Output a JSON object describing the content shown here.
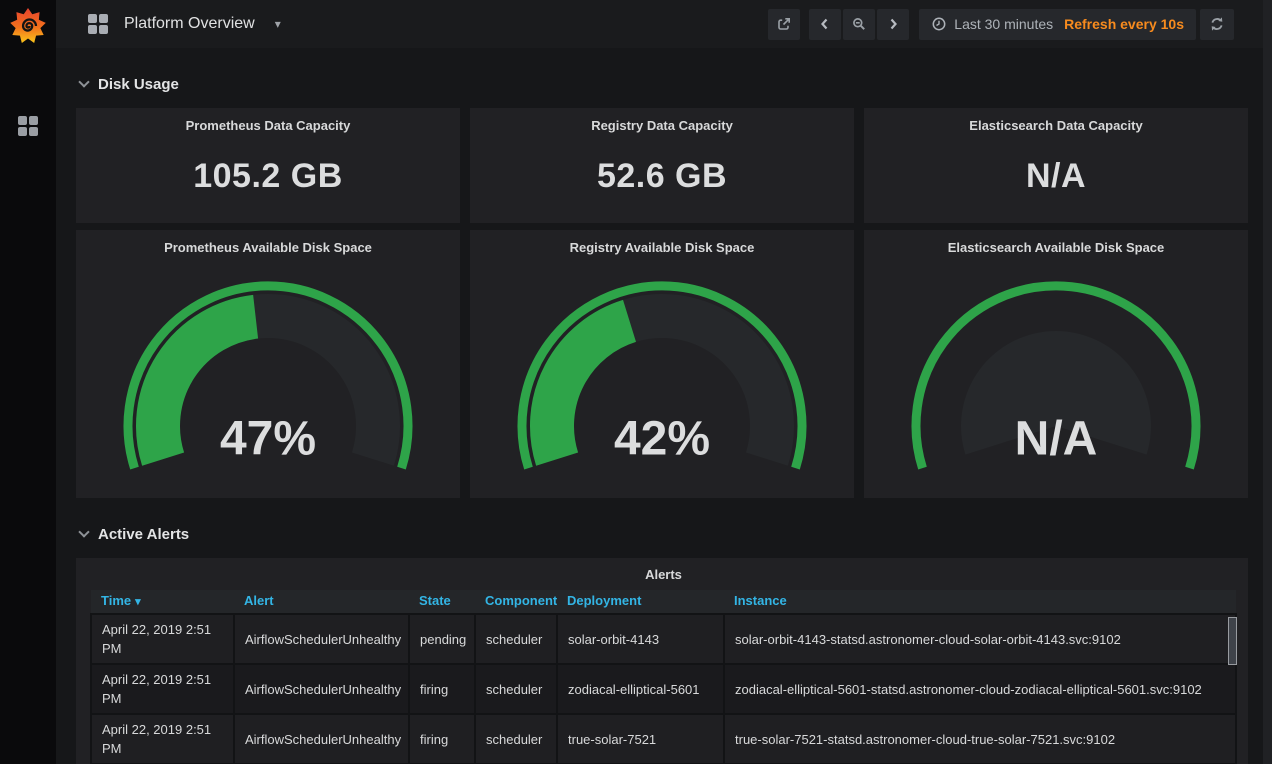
{
  "navbar": {
    "title": "Platform Overview",
    "title_caret": "▾",
    "time_range": "Last 30 minutes",
    "refresh_text": "Refresh every 10s"
  },
  "sections": {
    "disk_usage": "Disk Usage",
    "active_alerts": "Active Alerts"
  },
  "stat_panels": [
    {
      "title": "Prometheus Data Capacity",
      "value": "105.2 GB"
    },
    {
      "title": "Registry Data Capacity",
      "value": "52.6 GB"
    },
    {
      "title": "Elasticsearch Data Capacity",
      "value": "N/A"
    }
  ],
  "gauge_panels": [
    {
      "title": "Prometheus Available Disk Space",
      "value_label": "47%",
      "percent": 47
    },
    {
      "title": "Registry Available Disk Space",
      "value_label": "42%",
      "percent": 42
    },
    {
      "title": "Elasticsearch Available Disk Space",
      "value_label": "N/A",
      "percent": null
    }
  ],
  "gauge_config": {
    "min": 0,
    "max": 100,
    "span_degrees": 215
  },
  "alerts_table": {
    "title": "Alerts",
    "columns": [
      {
        "label": "Time",
        "sorted": "desc"
      },
      {
        "label": "Alert"
      },
      {
        "label": "State"
      },
      {
        "label": "Component"
      },
      {
        "label": "Deployment"
      },
      {
        "label": "Instance"
      }
    ],
    "rows": [
      [
        "April 22, 2019 2:51 PM",
        "AirflowSchedulerUnhealthy",
        "pending",
        "scheduler",
        "solar-orbit-4143",
        "solar-orbit-4143-statsd.astronomer-cloud-solar-orbit-4143.svc:9102"
      ],
      [
        "April 22, 2019 2:51 PM",
        "AirflowSchedulerUnhealthy",
        "firing",
        "scheduler",
        "zodiacal-elliptical-5601",
        "zodiacal-elliptical-5601-statsd.astronomer-cloud-zodiacal-elliptical-5601.svc:9102"
      ],
      [
        "April 22, 2019 2:51 PM",
        "AirflowSchedulerUnhealthy",
        "firing",
        "scheduler",
        "true-solar-7521",
        "true-solar-7521-statsd.astronomer-cloud-true-solar-7521.svc:9102"
      ]
    ]
  },
  "colors": {
    "green": "#2ea449",
    "gauge_bg": "#26282b",
    "blue": "#33b5e5",
    "orange": "#f78b1e",
    "panel_bg": "#212124",
    "page_bg": "#161719",
    "value_text": "#dcddde"
  }
}
